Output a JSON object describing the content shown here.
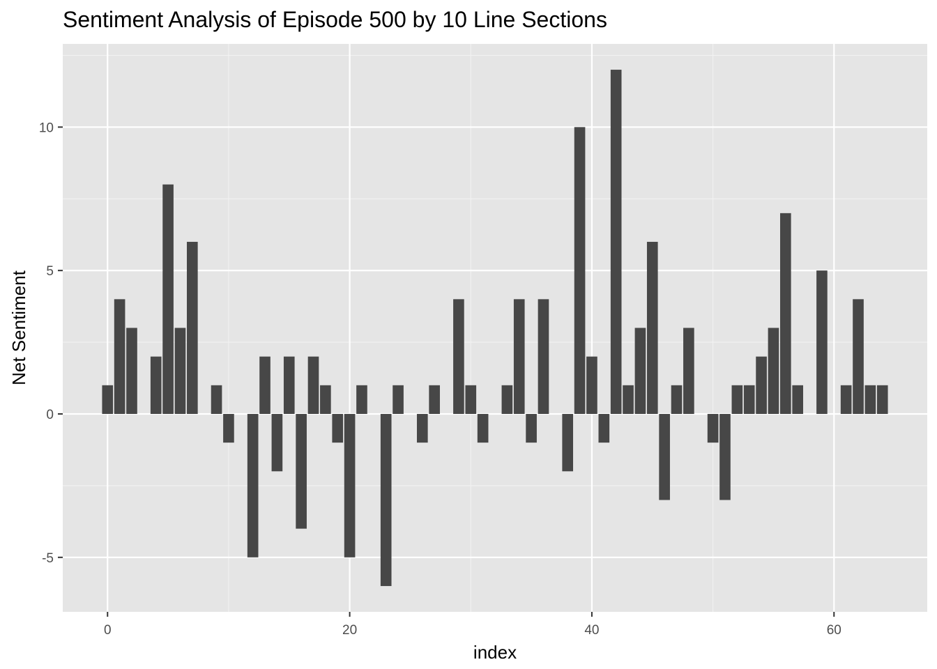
{
  "chart_data": {
    "type": "bar",
    "title": "Sentiment Analysis of Episode 500 by 10 Line Sections",
    "xlabel": "index",
    "ylabel": "Net Sentiment",
    "xlim": [
      -3.7,
      67.7
    ],
    "ylim": [
      -6.9,
      12.9
    ],
    "x_ticks": [
      0,
      20,
      40,
      60
    ],
    "y_ticks": [
      -5,
      0,
      5,
      10
    ],
    "x_tick_labels": [
      "0",
      "20",
      "40",
      "60"
    ],
    "y_tick_labels": [
      "-5",
      "0",
      "5",
      "10"
    ],
    "grid": true,
    "bar_color": "#474747",
    "panel_color": "#e5e5e5",
    "x": [
      0,
      1,
      2,
      4,
      5,
      6,
      7,
      9,
      10,
      12,
      13,
      14,
      15,
      16,
      17,
      18,
      19,
      20,
      21,
      23,
      24,
      26,
      27,
      29,
      30,
      31,
      33,
      34,
      35,
      36,
      38,
      39,
      40,
      41,
      42,
      43,
      44,
      45,
      46,
      47,
      48,
      50,
      51,
      52,
      53,
      54,
      55,
      56,
      57,
      59,
      61,
      62,
      63,
      64
    ],
    "values": [
      1,
      4,
      3,
      2,
      8,
      3,
      6,
      1,
      -1,
      -5,
      2,
      -2,
      2,
      -4,
      2,
      1,
      -1,
      -5,
      1,
      -6,
      1,
      -1,
      1,
      4,
      1,
      -1,
      1,
      4,
      -1,
      4,
      -2,
      10,
      2,
      -1,
      12,
      1,
      3,
      6,
      -3,
      1,
      3,
      -1,
      -3,
      1,
      1,
      2,
      3,
      7,
      1,
      5,
      1,
      4,
      1,
      1
    ]
  }
}
